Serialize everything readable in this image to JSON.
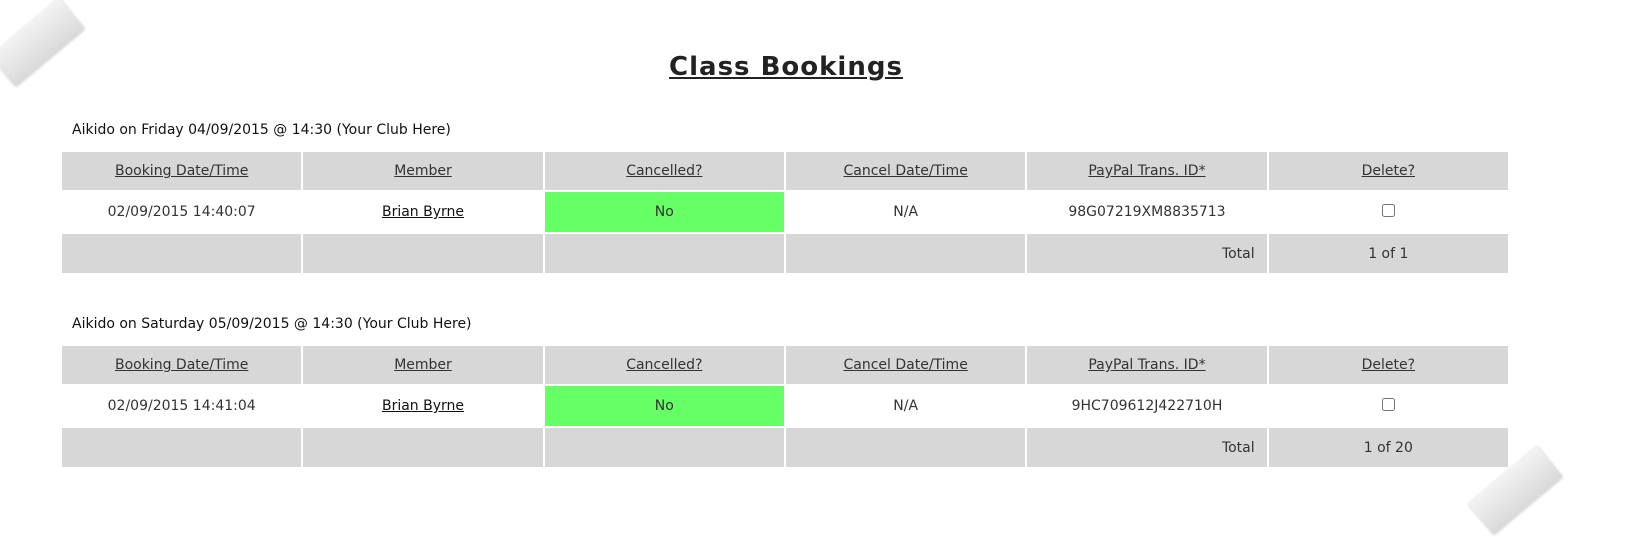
{
  "title": "Class Bookings",
  "columns": [
    "Booking Date/Time",
    "Member",
    "Cancelled?",
    "Cancel Date/Time",
    "PayPal Trans. ID*",
    "Delete?"
  ],
  "total_label": "Total",
  "accent_cancelled_no": "#66ff66",
  "classes": [
    {
      "heading": "Aikido on Friday 04/09/2015 @ 14:30 (Your Club Here)",
      "rows": [
        {
          "booking": "02/09/2015 14:40:07",
          "member": "Brian Byrne",
          "cancelled": "No",
          "cancel_time": "N/A",
          "paypal": "98G07219XM8835713",
          "delete": false
        }
      ],
      "total": "1 of 1"
    },
    {
      "heading": "Aikido on Saturday 05/09/2015 @ 14:30 (Your Club Here)",
      "rows": [
        {
          "booking": "02/09/2015 14:41:04",
          "member": "Brian Byrne",
          "cancelled": "No",
          "cancel_time": "N/A",
          "paypal": "9HC709612J422710H",
          "delete": false
        }
      ],
      "total": "1 of 20"
    }
  ]
}
